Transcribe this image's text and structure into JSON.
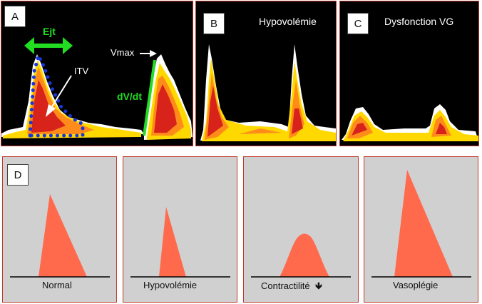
{
  "panel_a": {
    "letter": "A",
    "ejt_label": "Ejt",
    "itv_label": "ITV",
    "vmax_label": "Vmax",
    "dvdt_label": "dV/dt"
  },
  "panel_b": {
    "letter": "B",
    "title": "Hypovolémie"
  },
  "panel_c": {
    "letter": "C",
    "title": "Dysfonction VG"
  },
  "panel_d": {
    "letter": "D",
    "items": [
      {
        "label": "Normal"
      },
      {
        "label": "Hypovolémie"
      },
      {
        "label": "Contractilité"
      },
      {
        "label": "Vasoplégie"
      }
    ],
    "down_arrow": "🡻"
  },
  "colors": {
    "panel_border": "#c0392b",
    "doppler_white": "#ffffff",
    "doppler_yellow": "#ffd800",
    "doppler_orange": "#ff8c1a",
    "doppler_red": "#d8231a",
    "ejt_arrow": "#22dd22",
    "itv_dots": "#1a35d8",
    "shape_fill": "#ff6a4d"
  }
}
